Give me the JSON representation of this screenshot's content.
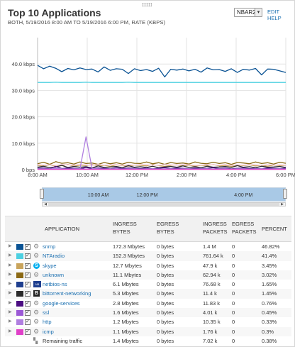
{
  "header": {
    "title": "Top 10 Applications",
    "subtitle": "BOTH, 5/19/2016 8:00 AM TO 5/19/2016 6:00 PM, RATE (KBPS)",
    "select_value": "NBAR2",
    "edit_label": "EDIT",
    "help_label": "HELP"
  },
  "chart_data": {
    "type": "line",
    "y_ticks": [
      "0 bps",
      "10.0 kbps",
      "20.0 kbps",
      "30.0 kbps",
      "40.0 kbps"
    ],
    "ylim": [
      0,
      50
    ],
    "x_ticks": [
      "8:00 AM",
      "10:00 AM",
      "12:00 PM",
      "2:00 PM",
      "4:00 PM",
      "6:00 PM"
    ],
    "x_tick_hours": [
      8,
      10,
      12,
      14,
      16,
      18
    ],
    "xlim": [
      8,
      18
    ],
    "grid": true,
    "series": [
      {
        "name": "snmp",
        "color": "#0b5394",
        "values": [
          39.5,
          38.2,
          39.2,
          38.4,
          37.1,
          38.3,
          37.8,
          38.5,
          37.9,
          38.1,
          37.0,
          38.9,
          37.6,
          38.2,
          38.0,
          36.4,
          38.2,
          37.5,
          37.9,
          37.2,
          38.4,
          35.1,
          38.0,
          37.7,
          38.1,
          37.4,
          38.0,
          36.9,
          38.5,
          37.8,
          37.9,
          37.2,
          38.2,
          36.8,
          38.0,
          37.7,
          38.3,
          35.9,
          38.1,
          38.0,
          37.4,
          36.8
        ]
      },
      {
        "name": "NTAradio",
        "color": "#4dd0e1",
        "values": [
          33.0,
          33.0,
          33.0,
          33.1,
          33.0,
          33.0,
          33.0,
          33.0,
          33.1,
          33.0,
          33.0,
          33.0,
          33.0,
          33.0,
          33.0,
          33.1,
          33.0,
          33.0,
          33.0,
          33.0,
          33.0,
          33.0,
          33.0,
          33.0,
          33.0,
          33.0,
          33.0,
          33.0,
          33.0,
          33.0,
          33.0,
          33.0,
          33.0,
          33.0,
          33.0,
          33.0,
          33.0,
          33.0,
          33.0,
          33.0,
          33.0,
          33.0
        ]
      },
      {
        "name": "skype",
        "color": "#c9a45c",
        "values": [
          1.6,
          1.4,
          1.8,
          1.2,
          1.5,
          2.0,
          1.3,
          1.7,
          1.5,
          1.9,
          1.4,
          1.6,
          1.2,
          1.8,
          1.5,
          1.3,
          1.7,
          1.6,
          1.4,
          1.9,
          1.5,
          1.2,
          1.6,
          1.8,
          1.4,
          1.7,
          1.3,
          1.6,
          1.5,
          1.9,
          1.4,
          1.6,
          1.2,
          1.7,
          1.5,
          1.8,
          1.4,
          1.6,
          1.3,
          1.7,
          1.5,
          1.6
        ]
      },
      {
        "name": "unknown",
        "color": "#8b6914",
        "values": [
          2.2,
          2.8,
          2.0,
          3.0,
          2.4,
          2.6,
          2.1,
          2.9,
          2.3,
          2.5,
          2.0,
          2.7,
          2.2,
          2.6,
          2.1,
          2.8,
          2.4,
          2.3,
          2.9,
          2.2,
          2.6,
          2.0,
          2.7,
          2.3,
          2.5,
          2.1,
          2.9,
          2.4,
          2.2,
          2.8,
          2.3,
          2.6,
          2.0,
          2.7,
          2.5,
          2.2,
          2.9,
          2.3,
          2.6,
          2.1,
          2.8,
          2.4
        ]
      },
      {
        "name": "netbios-ns",
        "color": "#f4c7d8",
        "values": [
          1.9,
          1.7,
          1.8,
          1.6,
          1.9,
          1.8,
          1.7,
          1.9,
          1.8,
          1.6,
          1.9,
          1.7,
          1.8,
          1.9,
          1.6,
          1.8,
          1.7,
          1.9,
          1.8,
          1.7,
          1.6,
          1.9,
          1.8,
          1.7,
          1.9,
          1.8,
          1.6,
          1.7,
          1.9,
          1.8,
          1.7,
          1.9,
          1.6,
          1.8,
          1.7,
          1.9,
          1.8,
          1.6,
          1.9,
          1.7,
          1.8,
          1.7
        ]
      },
      {
        "name": "bittorrent-networking",
        "color": "#2b2b2b",
        "values": [
          0.9,
          1.3,
          0.7,
          1.0,
          1.6,
          0.8,
          1.2,
          0.9,
          1.1,
          0.6,
          1.4,
          0.8,
          1.0,
          1.2,
          0.7,
          1.5,
          0.9,
          1.1,
          0.8,
          1.3,
          0.7,
          1.0,
          1.2,
          0.9,
          1.4,
          0.8,
          1.1,
          0.7,
          1.3,
          0.9,
          1.0,
          1.2,
          0.8,
          1.5,
          0.9,
          1.1,
          0.7,
          1.3,
          0.9,
          1.0,
          1.2,
          0.8
        ]
      },
      {
        "name": "google-services",
        "color": "#4b0d82",
        "values": [
          0.5,
          0.6,
          0.3,
          1.2,
          0.4,
          0.6,
          0.5,
          0.3,
          0.8,
          0.4,
          0.6,
          0.5,
          0.3,
          0.7,
          0.4,
          0.6,
          0.5,
          0.4,
          0.6,
          0.3,
          0.5,
          0.7,
          0.4,
          0.6,
          0.5,
          0.3,
          0.6,
          0.4,
          0.5,
          0.7,
          0.4,
          0.6,
          0.3,
          0.5,
          0.6,
          0.4,
          0.5,
          0.3,
          0.6,
          0.5,
          0.4,
          0.6
        ]
      },
      {
        "name": "ssl",
        "color": "#9b59d6",
        "values": [
          0.2,
          0.2,
          0.3,
          0.2,
          0.3,
          0.2,
          0.2,
          0.3,
          0.2,
          0.2,
          0.3,
          0.2,
          0.2,
          0.3,
          0.2,
          0.2,
          0.3,
          0.2,
          0.2,
          0.3,
          0.2,
          0.2,
          0.3,
          0.2,
          0.2,
          0.3,
          0.2,
          0.2,
          0.3,
          0.2,
          0.2,
          0.3,
          0.2,
          0.2,
          0.3,
          0.2,
          0.2,
          0.3,
          0.2,
          0.2,
          0.3,
          0.2
        ]
      },
      {
        "name": "http",
        "color": "#b07fe0",
        "values": [
          0.3,
          0.3,
          0.2,
          0.5,
          0.3,
          0.2,
          0.3,
          0.3,
          12.4,
          0.4,
          0.3,
          0.2,
          0.3,
          0.3,
          0.2,
          0.3,
          0.3,
          0.2,
          0.3,
          0.3,
          0.2,
          0.3,
          0.3,
          0.2,
          0.3,
          0.3,
          0.2,
          0.3,
          0.3,
          0.2,
          0.3,
          0.3,
          0.2,
          0.3,
          0.3,
          0.2,
          0.3,
          0.3,
          0.2,
          0.3,
          0.3,
          0.2
        ]
      },
      {
        "name": "icmp",
        "color": "#e040c8",
        "values": [
          0.1,
          0.1,
          0.1,
          0.1,
          0.1,
          0.1,
          0.1,
          0.1,
          0.1,
          0.1,
          0.1,
          0.1,
          0.1,
          0.1,
          0.1,
          0.1,
          0.1,
          0.1,
          0.1,
          0.1,
          0.1,
          0.1,
          0.1,
          0.1,
          0.1,
          0.1,
          0.1,
          0.1,
          0.1,
          0.1,
          0.1,
          0.1,
          0.1,
          0.1,
          0.1,
          0.1,
          0.1,
          0.1,
          0.1,
          0.1,
          0.1,
          0.1
        ]
      }
    ]
  },
  "navigator": {
    "labels": [
      "10:00 AM",
      "12:00 PM",
      "4:00 PM"
    ],
    "label_hours": [
      10,
      12,
      16
    ]
  },
  "table": {
    "headers": {
      "application": "APPLICATION",
      "ingress_bytes": "INGRESS BYTES",
      "egress_bytes": "EGRESS BYTES",
      "ingress_packets": "INGRESS PACKETS",
      "egress_packets": "EGRESS PACKETS",
      "percent": "PERCENT"
    },
    "rows": [
      {
        "name": "snmp",
        "icon": "gear-icon",
        "color": "#0b5394",
        "ingress_bytes": "172.3 Mbytes",
        "egress_bytes": "0 bytes",
        "ingress_packets": "1.4 M",
        "egress_packets": "0",
        "percent": "46.82%"
      },
      {
        "name": "NTAradio",
        "icon": "gear-icon",
        "color": "#4dd0e1",
        "ingress_bytes": "152.3 Mbytes",
        "egress_bytes": "0 bytes",
        "ingress_packets": "761.64 k",
        "egress_packets": "0",
        "percent": "41.4%"
      },
      {
        "name": "skype",
        "icon": "skype-icon",
        "color": "#c9a45c",
        "ingress_bytes": "12.7 Mbytes",
        "egress_bytes": "0 bytes",
        "ingress_packets": "47.9 k",
        "egress_packets": "0",
        "percent": "3.45%"
      },
      {
        "name": "unknown",
        "icon": "gear-icon",
        "color": "#8b6914",
        "ingress_bytes": "11.1 Mbytes",
        "egress_bytes": "0 bytes",
        "ingress_packets": "62.94 k",
        "egress_packets": "0",
        "percent": "3.02%"
      },
      {
        "name": "netbios-ns",
        "icon": "netbios-icon",
        "color": "#1f3f8f",
        "ingress_bytes": "6.1 Mbytes",
        "egress_bytes": "0 bytes",
        "ingress_packets": "76.68 k",
        "egress_packets": "0",
        "percent": "1.65%"
      },
      {
        "name": "bittorrent-networking",
        "icon": "bittorrent-icon",
        "color": "#2b2b2b",
        "ingress_bytes": "5.3 Mbytes",
        "egress_bytes": "0 bytes",
        "ingress_packets": "11.4 k",
        "egress_packets": "0",
        "percent": "1.45%"
      },
      {
        "name": "google-services",
        "icon": "gear-icon",
        "color": "#4b0d82",
        "ingress_bytes": "2.8 Mbytes",
        "egress_bytes": "0 bytes",
        "ingress_packets": "11.83 k",
        "egress_packets": "0",
        "percent": "0.76%"
      },
      {
        "name": "ssl",
        "icon": "gear-icon",
        "color": "#9b59d6",
        "ingress_bytes": "1.6 Mbytes",
        "egress_bytes": "0 bytes",
        "ingress_packets": "4.01 k",
        "egress_packets": "0",
        "percent": "0.45%"
      },
      {
        "name": "http",
        "icon": "gear-icon",
        "color": "#b07fe0",
        "ingress_bytes": "1.2 Mbytes",
        "egress_bytes": "0 bytes",
        "ingress_packets": "10.35 k",
        "egress_packets": "0",
        "percent": "0.33%"
      },
      {
        "name": "icmp",
        "icon": "gear-icon",
        "color": "#e040c8",
        "ingress_bytes": "1.1 Mbytes",
        "egress_bytes": "0 bytes",
        "ingress_packets": "1.76 k",
        "egress_packets": "0",
        "percent": "0.3%"
      }
    ],
    "remaining": {
      "name": "Remaining traffic",
      "icon": "remaining-traffic-icon",
      "ingress_bytes": "1.4 Mbytes",
      "egress_bytes": "0 bytes",
      "ingress_packets": "7.02 k",
      "egress_packets": "0",
      "percent": "0.38%"
    }
  }
}
